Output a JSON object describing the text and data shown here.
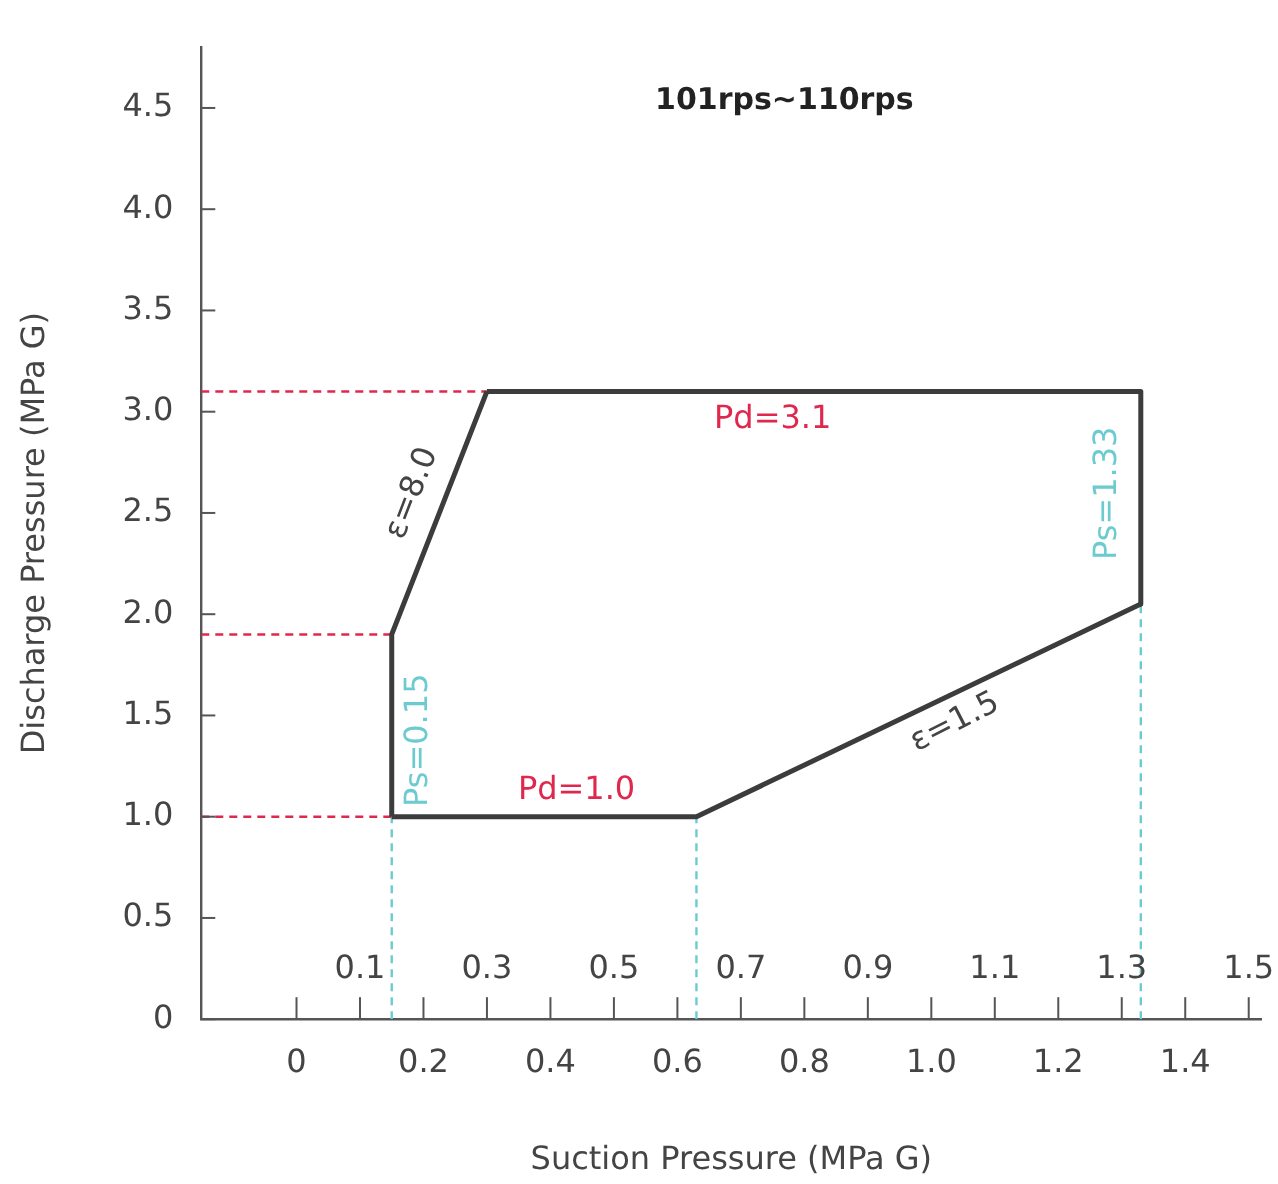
{
  "chart_data": {
    "type": "line",
    "title": "101rps~110rps",
    "xlabel": "Suction Pressure (MPa G)",
    "ylabel": "Discharge Pressure (MPa G)",
    "xlim": [
      -0.15,
      1.52
    ],
    "ylim": [
      0,
      4.8
    ],
    "xticks": [
      0,
      {
        "value": 0.1,
        "label": null
      },
      0.2,
      {
        "value": 0.3,
        "label": null
      },
      0.4,
      {
        "value": 0.5,
        "label": null
      },
      0.6,
      {
        "value": 0.7,
        "label": null
      },
      0.8,
      {
        "value": 0.9,
        "label": null
      },
      {
        "value": 1,
        "label": "1.0"
      },
      {
        "value": 1.1,
        "label": null
      },
      1.2,
      {
        "value": 1.3,
        "label": null
      },
      1.4,
      {
        "value": 1.5,
        "label": null
      }
    ],
    "x2lim": [
      -0.15,
      1.52
    ],
    "x2ticks": [
      0.1,
      0.3,
      0.5,
      0.7,
      0.9,
      1.1,
      1.3,
      1.5
    ],
    "yticks": [
      0,
      0.5,
      {
        "value": 1,
        "label": "1.0"
      },
      1.5,
      {
        "value": 2,
        "label": "2.0"
      },
      2.5,
      {
        "value": 3,
        "label": "3.0"
      },
      3.5,
      {
        "value": 4,
        "label": "4.0"
      },
      4.5
    ],
    "grid": false,
    "legend": false,
    "marker": "none",
    "series": [
      {
        "color": "#3c3c3c",
        "line_style": "solid",
        "x": [
          0.15,
          0.63,
          1.33
        ],
        "values": [
          1.0,
          1.0,
          2.05
        ]
      },
      {
        "color": "#3c3c3c",
        "line_style": "solid",
        "x": [
          0.15,
          0.15,
          0.3
        ],
        "values": [
          1.0,
          1.9,
          3.1
        ]
      },
      {
        "color": "#3c3c3c",
        "line_style": "solid",
        "x": [
          0.3,
          1.33,
          1.33
        ],
        "values": [
          3.1,
          3.1,
          2.05
        ]
      },
      {
        "color": "#e0284f",
        "line_style": "dashed",
        "x": [
          -0.15,
          0.15
        ],
        "values": [
          1.0,
          1.0
        ]
      },
      {
        "color": "#e0284f",
        "line_style": "dashed",
        "x": [
          -0.15,
          0.15
        ],
        "values": [
          1.9,
          1.9
        ]
      },
      {
        "color": "#e0284f",
        "line_style": "dashed",
        "x": [
          -0.15,
          0.3
        ],
        "values": [
          3.1,
          3.1
        ]
      },
      {
        "color": "#6ccbd0",
        "line_style": "dashed",
        "x": [
          0.15,
          0.15
        ],
        "values": [
          0,
          1.0
        ]
      },
      {
        "color": "#6ccbd0",
        "line_style": "dashed",
        "x": [
          0.63,
          0.63
        ],
        "values": [
          0,
          1.0
        ]
      },
      {
        "color": "#6ccbd0",
        "line_style": "dashed",
        "x": [
          1.33,
          1.33
        ],
        "values": [
          0,
          2.05
        ]
      }
    ],
    "annotations": [
      "Pd=3.1",
      "Ps=1.33",
      "ε=8.0",
      "ε=1.5",
      "Ps=0.15",
      "Pd=1.0"
    ]
  }
}
